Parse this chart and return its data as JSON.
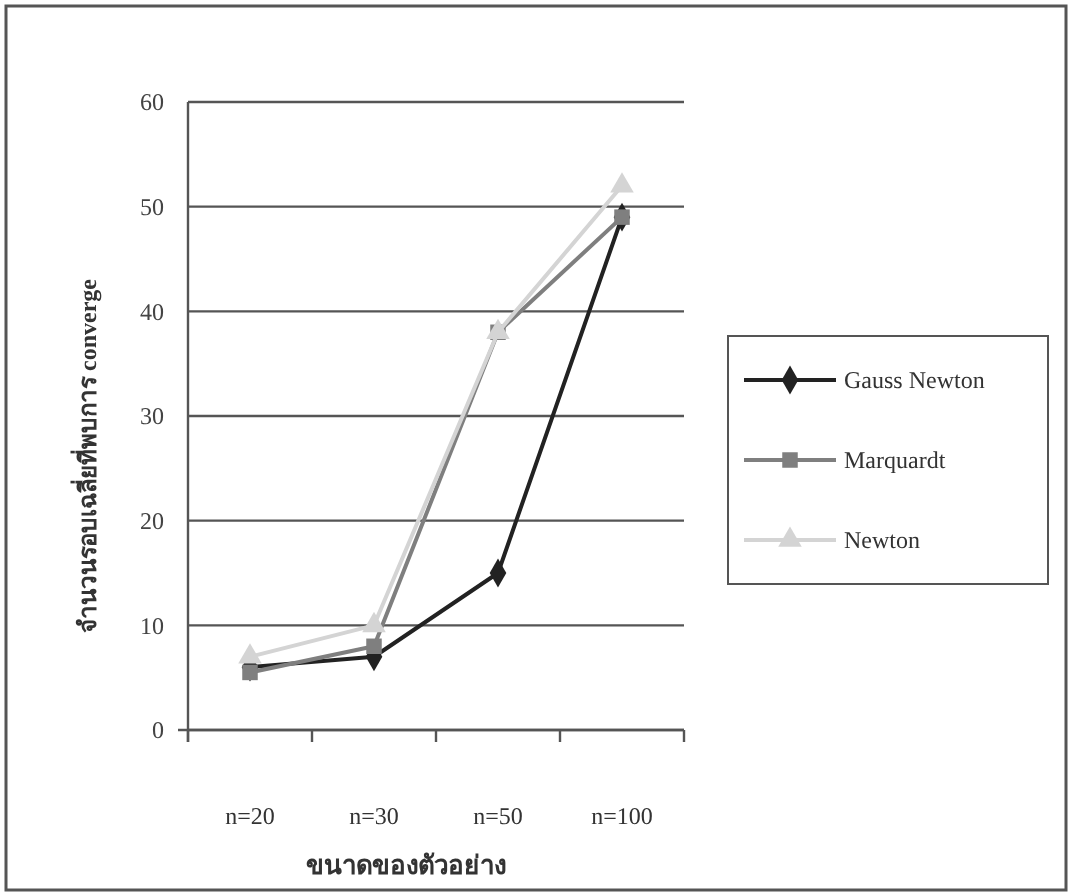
{
  "chart_data": {
    "type": "line",
    "xlabel": "ขนาดของตัวอย่าง",
    "ylabel": "จำนวนรอบเฉลี่ยที่พบการ converge",
    "categories": [
      "n=20",
      "n=30",
      "n=50",
      "n=100"
    ],
    "series": [
      {
        "name": "Gauss Newton",
        "color": "#222222",
        "marker": "diamond",
        "values": [
          6,
          7,
          15,
          49
        ]
      },
      {
        "name": "Marquardt",
        "color": "#7f7f7f",
        "marker": "square",
        "values": [
          5.5,
          8,
          38,
          49
        ]
      },
      {
        "name": "Newton",
        "color": "#d4d4d4",
        "marker": "triangle",
        "values": [
          7,
          10,
          38,
          52
        ]
      }
    ],
    "ylim": [
      0,
      60
    ],
    "yticks": [
      0,
      10,
      20,
      30,
      40,
      50,
      60
    ],
    "grid": "y",
    "legend": "right",
    "line_style": "solid"
  }
}
